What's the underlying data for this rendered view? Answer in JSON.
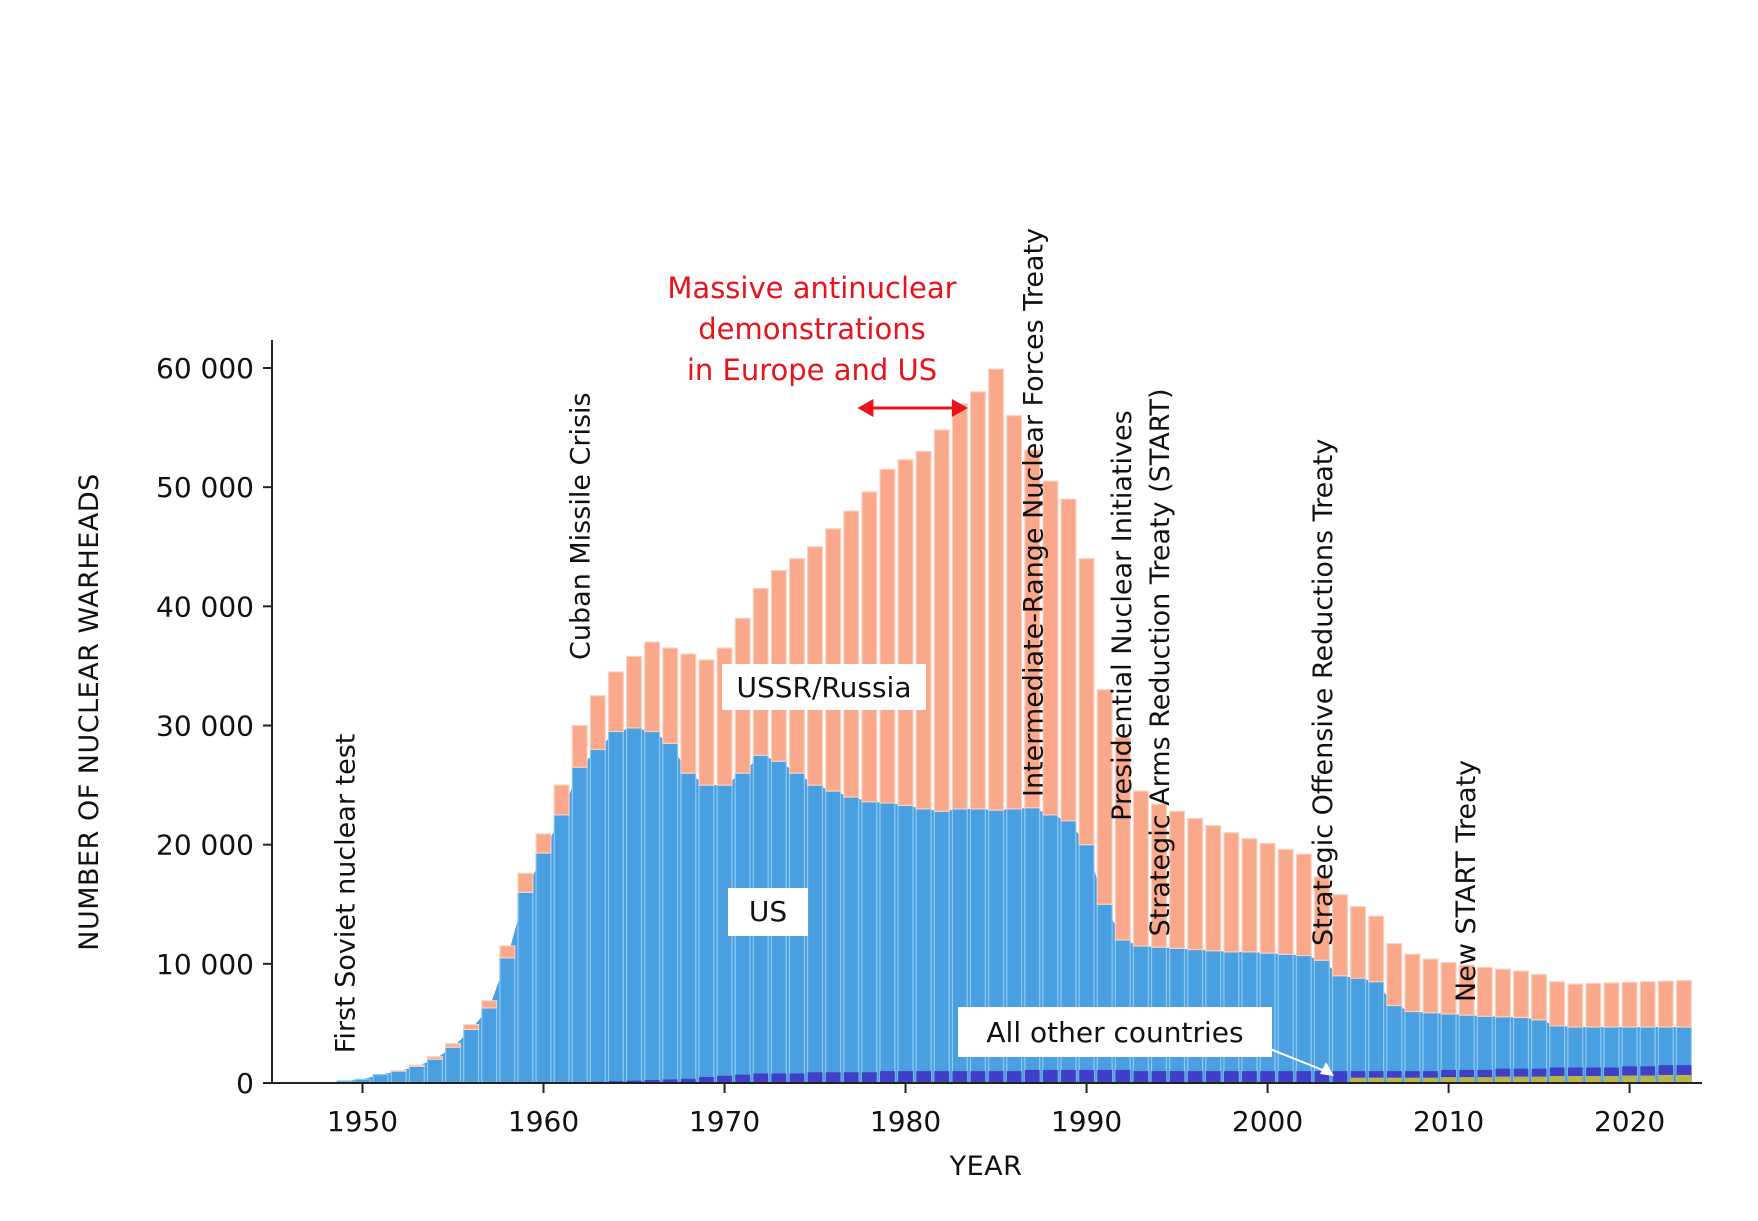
{
  "chart_data": {
    "type": "bar",
    "stacked": true,
    "xlabel": "YEAR",
    "ylabel": "NUMBER OF NUCLEAR WARHEADS",
    "ylim": [
      0,
      60000
    ],
    "xlim": [
      1945,
      2024
    ],
    "yticks": [
      0,
      10000,
      20000,
      30000,
      40000,
      50000,
      60000
    ],
    "ytick_labels": [
      "0",
      "10 000",
      "20 000",
      "30 000",
      "40 000",
      "50 000",
      "60 000"
    ],
    "xticks": [
      1950,
      1960,
      1970,
      1980,
      1990,
      2000,
      2010,
      2020
    ],
    "xtick_labels": [
      "1950",
      "1960",
      "1970",
      "1980",
      "1990",
      "2000",
      "2010",
      "2020"
    ],
    "colors": {
      "us": "#4a9fe0",
      "ussr": "#f9a88c",
      "other": "#3f3fc8",
      "other2": "#c8c43a"
    },
    "years": [
      1949,
      1950,
      1951,
      1952,
      1953,
      1954,
      1955,
      1956,
      1957,
      1958,
      1959,
      1960,
      1961,
      1962,
      1963,
      1964,
      1965,
      1966,
      1967,
      1968,
      1969,
      1970,
      1971,
      1972,
      1973,
      1974,
      1975,
      1976,
      1977,
      1978,
      1979,
      1980,
      1981,
      1982,
      1983,
      1984,
      1985,
      1986,
      1987,
      1988,
      1989,
      1990,
      1991,
      1992,
      1993,
      1994,
      1995,
      1996,
      1997,
      1998,
      1999,
      2000,
      2001,
      2002,
      2003,
      2004,
      2005,
      2006,
      2007,
      2008,
      2009,
      2010,
      2011,
      2012,
      2013,
      2014,
      2015,
      2016,
      2017,
      2018,
      2019,
      2020,
      2021,
      2022,
      2023
    ],
    "series": [
      {
        "name": "US",
        "values": [
          170,
          300,
          700,
          1000,
          1400,
          2000,
          3000,
          4500,
          6300,
          10500,
          16000,
          19300,
          22500,
          26500,
          28000,
          29500,
          29800,
          29500,
          28500,
          26000,
          25000,
          25000,
          26000,
          27500,
          27000,
          26000,
          25000,
          24500,
          24000,
          23600,
          23500,
          23300,
          23000,
          22800,
          23000,
          23000,
          22900,
          23000,
          23100,
          22500,
          22000,
          20000,
          15000,
          12000,
          11500,
          11400,
          11300,
          11200,
          11100,
          11000,
          11000,
          10900,
          10800,
          10700,
          10300,
          9000,
          8800,
          8500,
          6500,
          6000,
          5900,
          5800,
          5700,
          5600,
          5550,
          5500,
          5300,
          4800,
          4700,
          4700,
          4700,
          4700,
          4700,
          4700,
          4700
        ]
      },
      {
        "name": "USSR/Russia",
        "values": [
          0,
          0,
          0,
          50,
          100,
          200,
          300,
          400,
          600,
          1000,
          1600,
          1600,
          2500,
          3500,
          4500,
          5000,
          6000,
          7500,
          8000,
          10000,
          10500,
          11500,
          13000,
          14000,
          16000,
          18000,
          20000,
          22000,
          24000,
          26000,
          28000,
          29000,
          30000,
          32000,
          34000,
          35000,
          37000,
          33000,
          30000,
          28000,
          27000,
          24000,
          18000,
          17000,
          13000,
          12000,
          11500,
          11000,
          10500,
          10000,
          9500,
          9200,
          8800,
          8500,
          7000,
          6800,
          6000,
          5500,
          5200,
          4800,
          4500,
          4300,
          4200,
          4100,
          4000,
          3900,
          3800,
          3700,
          3600,
          3650,
          3700,
          3750,
          3800,
          3850,
          3900
        ]
      },
      {
        "name": "All other countries",
        "values": [
          0,
          0,
          0,
          0,
          0,
          0,
          0,
          0,
          0,
          0,
          0,
          0,
          50,
          60,
          100,
          150,
          200,
          250,
          300,
          350,
          500,
          600,
          700,
          800,
          800,
          800,
          900,
          900,
          900,
          900,
          1000,
          1000,
          1000,
          1000,
          1000,
          1000,
          1000,
          1000,
          1100,
          1100,
          1100,
          1100,
          1100,
          1100,
          1000,
          1000,
          1000,
          1000,
          1000,
          1000,
          1000,
          1000,
          1000,
          1000,
          1000,
          1000,
          1000,
          1000,
          1000,
          1000,
          1000,
          1100,
          1100,
          1100,
          1200,
          1200,
          1200,
          1300,
          1300,
          1300,
          1300,
          1400,
          1400,
          1500,
          1500
        ]
      }
    ],
    "annotations": [
      {
        "id": "first-soviet",
        "text": "First Soviet nuclear test",
        "year": 1949
      },
      {
        "id": "cuban",
        "text": "Cuban Missile Crisis",
        "year": 1962
      },
      {
        "id": "inf",
        "text": "Intermediate-Range Nuclear Forces Treaty",
        "year": 1987
      },
      {
        "id": "pni",
        "text": "Presidential Nuclear Initiatives",
        "year": 1991
      },
      {
        "id": "start",
        "text": "Strategic Arms Reduction Treaty (START)",
        "year": 1991
      },
      {
        "id": "sort",
        "text": "Strategic Offensive Reductions Treaty",
        "year": 2002
      },
      {
        "id": "newstart",
        "text": "New START Treaty",
        "year": 2010
      }
    ],
    "demonstrations": {
      "lines": [
        "Massive antinuclear",
        "demonstrations",
        "in Europe and US"
      ],
      "from_year": 1979,
      "to_year": 1983
    },
    "series_labels": {
      "ussr": "USSR/Russia",
      "us": "US",
      "other": "All other countries"
    }
  }
}
